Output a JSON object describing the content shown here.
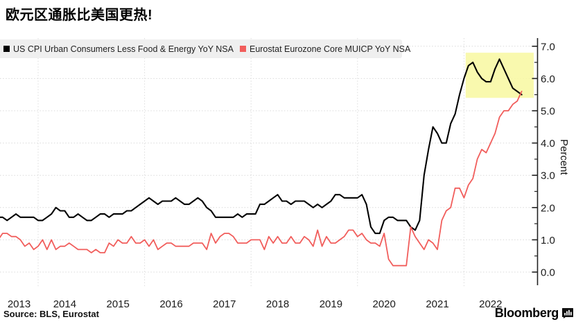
{
  "header": {
    "title": "欧元区通胀比美国更热!"
  },
  "legend": {
    "items": [
      {
        "label": "US CPI Urban Consumers Less Food & Energy YoY NSA",
        "color": "#000000"
      },
      {
        "label": "Eurostat Eurozone Core MUICP YoY NSA",
        "color": "#f15d5b"
      }
    ]
  },
  "y_axis": {
    "unit_label": "Percent"
  },
  "footer": {
    "source": "Source: BLS, Eurostat",
    "brand": "Bloomberg"
  },
  "chart_data": {
    "type": "line",
    "title": "欧元区通胀比美国更热!",
    "xlabel": "",
    "ylabel": "Percent",
    "ylim": [
      0.0,
      7.0
    ],
    "y_ticks": [
      0,
      1,
      2,
      3,
      4,
      5,
      6,
      7
    ],
    "y_tick_labels": [
      "0.0",
      "1.0",
      "2.0",
      "3.0",
      "4.0",
      "5.0",
      "6.0",
      "7.0"
    ],
    "y_minor_tick_step": 0.5,
    "x_start": "2013-03",
    "x_end": "2023-02",
    "x_frequency": "monthly",
    "x_year_labels": [
      "2013",
      "2014",
      "2015",
      "2016",
      "2017",
      "2018",
      "2019",
      "2020",
      "2021",
      "2022"
    ],
    "grid": "dotted; horizontal every 1.0, vertical at Jan of even years",
    "legend_position": "top-left strip",
    "series": [
      {
        "name": "US CPI Urban Consumers Less Food & Energy YoY NSA",
        "color": "#000000",
        "values": [
          1.9,
          1.7,
          1.7,
          1.6,
          1.7,
          1.8,
          1.7,
          1.7,
          1.7,
          1.7,
          1.6,
          1.6,
          1.7,
          1.8,
          2.0,
          1.9,
          1.9,
          1.7,
          1.7,
          1.8,
          1.7,
          1.6,
          1.6,
          1.7,
          1.8,
          1.8,
          1.7,
          1.8,
          1.8,
          1.8,
          1.9,
          1.9,
          2.0,
          2.1,
          2.2,
          2.3,
          2.2,
          2.1,
          2.2,
          2.2,
          2.2,
          2.3,
          2.2,
          2.1,
          2.1,
          2.2,
          2.3,
          2.2,
          2.0,
          1.9,
          1.7,
          1.7,
          1.7,
          1.7,
          1.7,
          1.8,
          1.7,
          1.8,
          1.8,
          1.8,
          2.1,
          2.1,
          2.2,
          2.3,
          2.4,
          2.2,
          2.2,
          2.1,
          2.2,
          2.2,
          2.2,
          2.1,
          2.0,
          2.1,
          2.0,
          2.1,
          2.2,
          2.4,
          2.4,
          2.3,
          2.3,
          2.3,
          2.3,
          2.4,
          2.1,
          1.4,
          1.2,
          1.2,
          1.6,
          1.7,
          1.7,
          1.6,
          1.6,
          1.6,
          1.4,
          1.3,
          1.6,
          3.0,
          3.8,
          4.5,
          4.3,
          4.0,
          4.0,
          4.6,
          4.9,
          5.5,
          6.0,
          6.4,
          6.5,
          6.2,
          6.0,
          5.9,
          5.9,
          6.3,
          6.6,
          6.3,
          6.0,
          5.7,
          5.6,
          5.5
        ]
      },
      {
        "name": "Eurostat Eurozone Core MUICP YoY NSA",
        "color": "#f15d5b",
        "values": [
          1.5,
          1.0,
          1.2,
          1.2,
          1.1,
          1.1,
          1.0,
          0.8,
          0.9,
          0.7,
          0.8,
          1.0,
          0.7,
          1.0,
          0.7,
          0.8,
          0.8,
          0.9,
          0.8,
          0.7,
          0.7,
          0.7,
          0.6,
          0.7,
          0.6,
          0.6,
          0.9,
          0.8,
          1.0,
          0.9,
          0.9,
          1.1,
          0.9,
          0.9,
          1.0,
          0.8,
          1.0,
          0.7,
          0.8,
          0.9,
          0.9,
          0.8,
          0.8,
          0.8,
          0.8,
          0.9,
          0.9,
          0.9,
          0.7,
          1.2,
          0.9,
          1.1,
          1.2,
          1.2,
          1.1,
          0.9,
          0.9,
          0.9,
          1.0,
          1.0,
          1.0,
          0.7,
          1.1,
          0.9,
          1.1,
          0.9,
          0.9,
          1.1,
          0.9,
          0.9,
          1.1,
          1.0,
          0.8,
          1.3,
          0.8,
          1.1,
          0.9,
          0.9,
          1.0,
          1.1,
          1.3,
          1.3,
          1.1,
          1.2,
          1.0,
          0.9,
          0.9,
          0.8,
          1.2,
          0.4,
          0.2,
          0.2,
          0.2,
          0.2,
          1.4,
          1.1,
          0.9,
          0.7,
          1.0,
          0.9,
          0.7,
          1.6,
          1.9,
          2.0,
          2.6,
          2.6,
          2.3,
          2.7,
          2.9,
          3.5,
          3.8,
          3.7,
          4.0,
          4.3,
          4.8,
          5.0,
          5.0,
          5.2,
          5.3,
          5.6
        ]
      }
    ],
    "highlight": {
      "shape": "rect",
      "color": "#f8f8a0",
      "from": "2022-02",
      "to": "end-of-axis",
      "value_min": 5.4,
      "value_max": 6.8
    }
  }
}
